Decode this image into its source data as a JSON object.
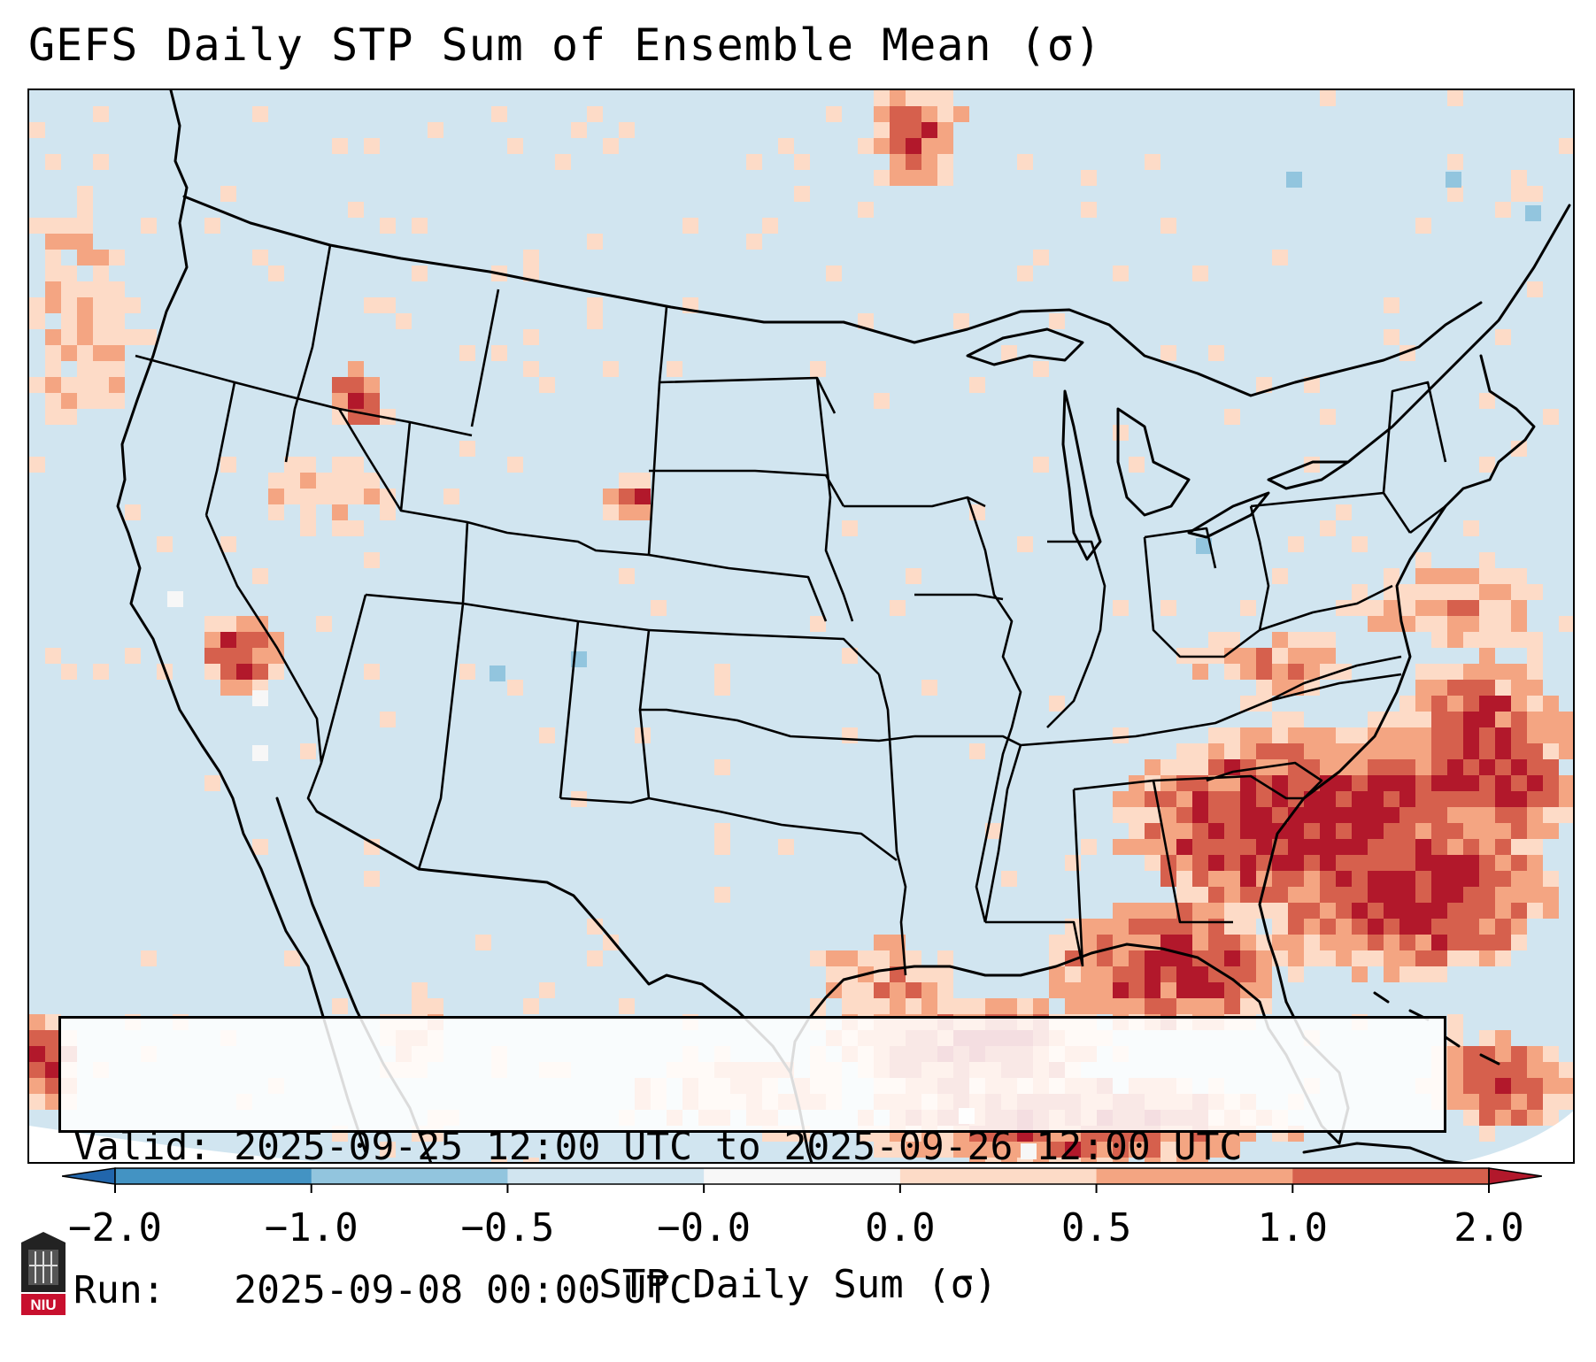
{
  "title": "GEFS Daily STP Sum of Ensemble Mean (σ)",
  "info": {
    "valid_line": "Valid: 2025-09-25 12:00 UTC to 2025-09-26 12:00 UTC",
    "run_line": "Run:   2025-09-08 00:00 UTC"
  },
  "colorbar": {
    "label": "STP Daily Sum (σ)",
    "ticks": [
      "−2.0",
      "−1.0",
      "−0.5",
      "−0.0",
      "0.0",
      "0.5",
      "1.0",
      "2.0"
    ],
    "colors": [
      "#2166ac",
      "#4393c3",
      "#92c5de",
      "#d1e5f0",
      "#f7f7f7",
      "#fddbc7",
      "#f4a582",
      "#d6604d",
      "#b2182b"
    ]
  },
  "map": {
    "region": "Contiguous United States",
    "background_color": "#d1e5f0",
    "anomaly_levels": [
      "0.0–0.5",
      "0.5–1.0",
      "1.0–2.0",
      ">2.0"
    ],
    "anomaly_colors": [
      "#fddbc7",
      "#f4a582",
      "#d6604d",
      "#b2182b"
    ]
  },
  "logo": {
    "text": "NIU"
  }
}
